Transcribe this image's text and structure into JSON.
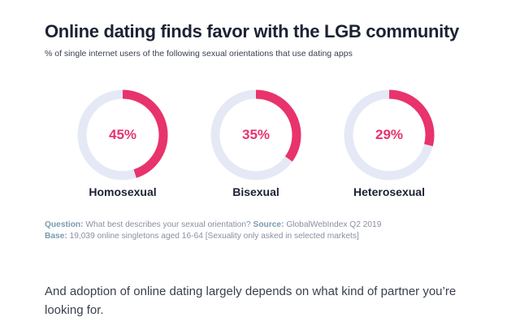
{
  "header": {
    "title": "Online dating finds favor with the LGB community",
    "subtitle": "% of single internet users of the following sexual orientations that use dating apps"
  },
  "chart_data": {
    "type": "pie",
    "title": "Online dating finds favor with the LGB community",
    "subtitle": "% of single internet users of the following sexual orientations that use dating apps",
    "categories": [
      "Homosexual",
      "Bisexual",
      "Heterosexual"
    ],
    "values": [
      45,
      35,
      29
    ],
    "labels": [
      "45%",
      "35%",
      "29%"
    ],
    "unit": "%",
    "style": "donut",
    "colors": {
      "fill": "#e8336d",
      "track": "#e4e9f5",
      "label": "#e8336d"
    }
  },
  "notes": {
    "question_label": "Question:",
    "question_text": "What best describes your sexual orientation?",
    "source_label": "Source:",
    "source_text": "GlobalWebIndex Q2 2019",
    "base_label": "Base:",
    "base_text": "19,039 online singletons aged 16-64 [Sexuality only asked in selected markets]"
  },
  "body": {
    "paragraph": "And adoption of online dating largely depends on what kind of partner you’re looking for."
  }
}
